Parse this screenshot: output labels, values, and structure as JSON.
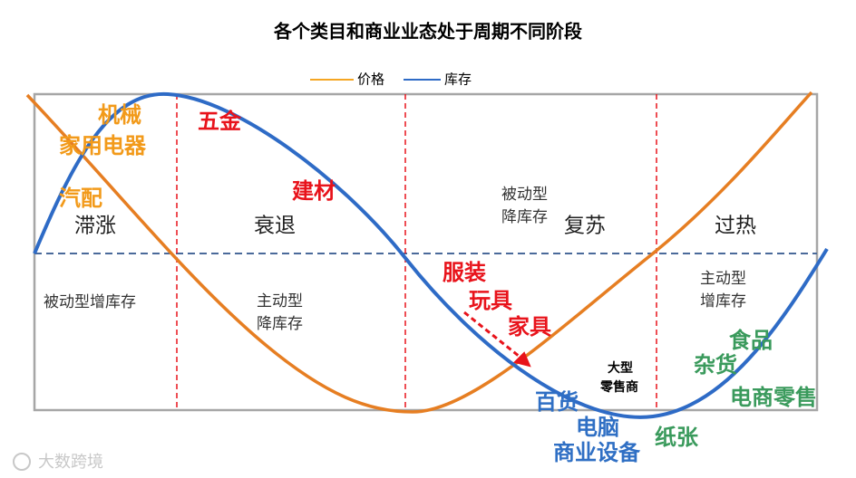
{
  "title": "各个类目和商业业态处于周期不同阶段",
  "legend": [
    {
      "label": "价格",
      "color": "#f5a623"
    },
    {
      "label": "库存",
      "color": "#2e6bc6"
    }
  ],
  "phases": [
    "滞涨",
    "衰退",
    "复苏",
    "过热"
  ],
  "inventory_states": [
    {
      "lines": [
        "被动型增库存"
      ]
    },
    {
      "lines": [
        "主动型",
        "降库存"
      ]
    },
    {
      "lines": [
        "被动型",
        "降库存"
      ]
    },
    {
      "lines": [
        "主动型",
        "增库存"
      ]
    }
  ],
  "categories": [
    {
      "label": "机械"
    },
    {
      "label": "家用电器"
    },
    {
      "label": "汽配"
    },
    {
      "label": "五金"
    },
    {
      "label": "建材"
    },
    {
      "label": "服装"
    },
    {
      "label": "玩具"
    },
    {
      "label": "家具"
    },
    {
      "label": "百货"
    },
    {
      "label": "电脑"
    },
    {
      "label": "商业设备"
    },
    {
      "label": "食品"
    },
    {
      "label": "杂货"
    },
    {
      "label": "电商零售"
    },
    {
      "label": "纸张"
    }
  ],
  "annotation": {
    "lines": [
      "大型",
      "零售商"
    ]
  },
  "watermark": "大数跨境"
}
